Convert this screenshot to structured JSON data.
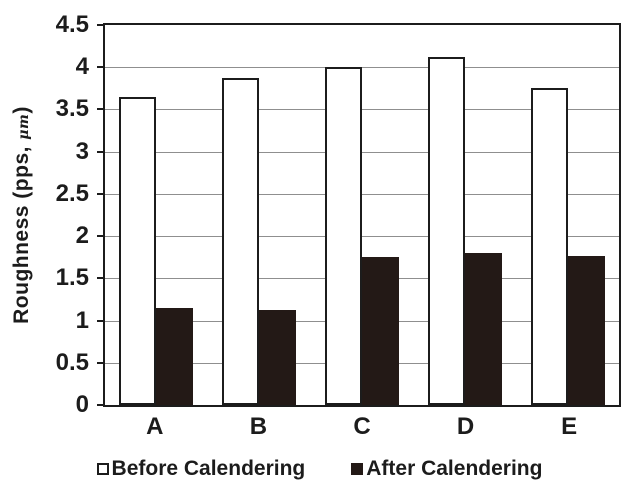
{
  "chart_data": {
    "type": "bar",
    "title": "",
    "xlabel": "",
    "ylabel": "Roughness (pps, μm)",
    "ylabel_parts": {
      "text": "Roughness (pps, ",
      "unit": "μm",
      "close": ")"
    },
    "categories": [
      "A",
      "B",
      "C",
      "D",
      "E"
    ],
    "series": [
      {
        "name": "Before Calendering",
        "values": [
          3.65,
          3.87,
          4.0,
          4.12,
          3.75
        ],
        "fill": "#ffffff",
        "border": "#1c1c1c",
        "marker": "open-square"
      },
      {
        "name": "After Calendering",
        "values": [
          1.15,
          1.13,
          1.75,
          1.8,
          1.77
        ],
        "fill": "#231916",
        "border": "#231916",
        "marker": "filled-square"
      }
    ],
    "ylim": [
      0,
      4.5
    ],
    "ytick_step": 0.5,
    "ytick_labels_top_to_bottom": [
      "4.5",
      "4",
      "3.5",
      "3",
      "2.5",
      "2",
      "1.5",
      "1",
      "0.5",
      "0"
    ],
    "grid": true,
    "gridline_color": "#8f8f8f",
    "axis_color": "#1c1c1c",
    "background": "#ffffff",
    "legend_position": "bottom"
  }
}
